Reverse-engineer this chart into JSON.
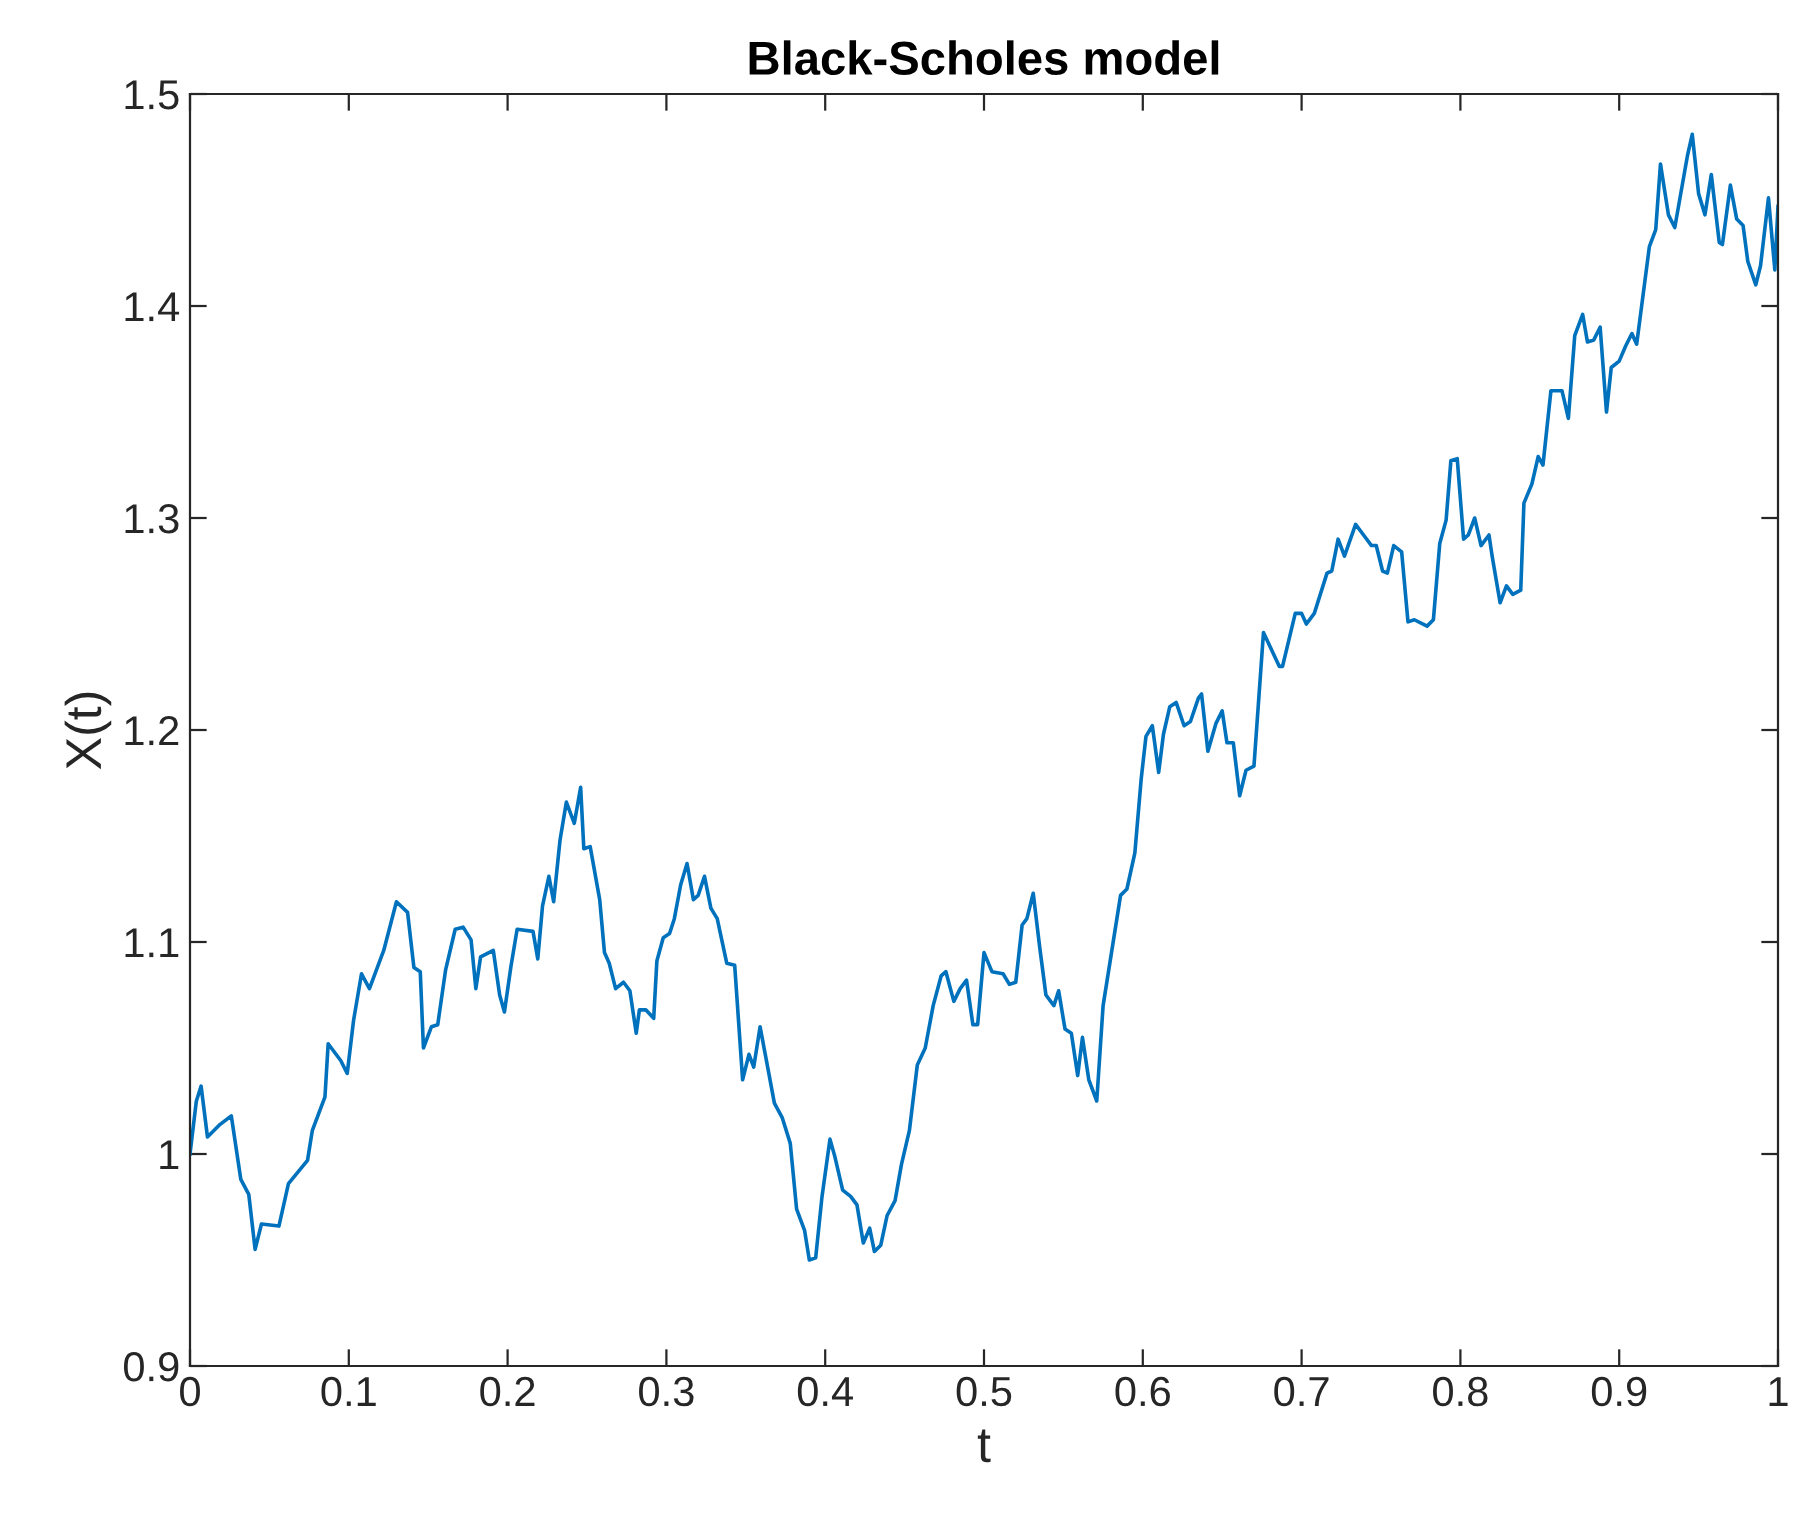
{
  "chart_data": {
    "type": "line",
    "title": "Black-Scholes model",
    "xlabel": "t",
    "ylabel": "X(t)",
    "xlim": [
      0,
      1
    ],
    "ylim": [
      0.9,
      1.5
    ],
    "xticks": [
      0,
      0.1,
      0.2,
      0.3,
      0.4,
      0.5,
      0.6,
      0.7,
      0.8,
      0.9,
      1
    ],
    "yticks": [
      0.9,
      1,
      1.1,
      1.2,
      1.3,
      1.4,
      1.5
    ],
    "grid": false,
    "legend": false,
    "marker": "none",
    "line_style": "solid",
    "series": [
      {
        "color": "#0072bd",
        "x": [
          0,
          0.004,
          0.007,
          0.011,
          0.019,
          0.026,
          0.032,
          0.037,
          0.041,
          0.045,
          0.056,
          0.062,
          0.074,
          0.077,
          0.085,
          0.087,
          0.095,
          0.099,
          0.103,
          0.108,
          0.113,
          0.122,
          0.13,
          0.137,
          0.141,
          0.145,
          0.147,
          0.152,
          0.156,
          0.161,
          0.167,
          0.172,
          0.177,
          0.18,
          0.183,
          0.191,
          0.195,
          0.198,
          0.202,
          0.206,
          0.216,
          0.219,
          0.222,
          0.226,
          0.229,
          0.233,
          0.237,
          0.242,
          0.246,
          0.248,
          0.252,
          0.258,
          0.261,
          0.264,
          0.268,
          0.273,
          0.277,
          0.281,
          0.283,
          0.287,
          0.292,
          0.294,
          0.298,
          0.302,
          0.305,
          0.309,
          0.313,
          0.317,
          0.32,
          0.324,
          0.328,
          0.332,
          0.338,
          0.343,
          0.348,
          0.352,
          0.355,
          0.359,
          0.364,
          0.368,
          0.373,
          0.378,
          0.382,
          0.387,
          0.39,
          0.394,
          0.398,
          0.403,
          0.406,
          0.411,
          0.416,
          0.42,
          0.424,
          0.428,
          0.431,
          0.435,
          0.439,
          0.444,
          0.448,
          0.453,
          0.458,
          0.463,
          0.468,
          0.473,
          0.476,
          0.481,
          0.485,
          0.489,
          0.493,
          0.496,
          0.5,
          0.505,
          0.512,
          0.516,
          0.52,
          0.524,
          0.527,
          0.531,
          0.535,
          0.539,
          0.544,
          0.547,
          0.551,
          0.555,
          0.559,
          0.562,
          0.566,
          0.571,
          0.575,
          0.586,
          0.59,
          0.595,
          0.599,
          0.602,
          0.606,
          0.61,
          0.613,
          0.617,
          0.621,
          0.626,
          0.63,
          0.635,
          0.637,
          0.641,
          0.646,
          0.65,
          0.653,
          0.657,
          0.661,
          0.665,
          0.67,
          0.676,
          0.686,
          0.688,
          0.696,
          0.7,
          0.703,
          0.708,
          0.716,
          0.719,
          0.723,
          0.727,
          0.734,
          0.739,
          0.744,
          0.747,
          0.751,
          0.754,
          0.758,
          0.763,
          0.767,
          0.771,
          0.779,
          0.783,
          0.787,
          0.791,
          0.794,
          0.798,
          0.802,
          0.805,
          0.809,
          0.813,
          0.818,
          0.82,
          0.825,
          0.829,
          0.833,
          0.838,
          0.84,
          0.845,
          0.849,
          0.852,
          0.857,
          0.864,
          0.868,
          0.872,
          0.877,
          0.88,
          0.884,
          0.888,
          0.892,
          0.895,
          0.9,
          0.904,
          0.908,
          0.911,
          0.919,
          0.923,
          0.926,
          0.931,
          0.935,
          0.943,
          0.946,
          0.95,
          0.954,
          0.958,
          0.963,
          0.965,
          0.97,
          0.974,
          0.978,
          0.981,
          0.986,
          0.989,
          0.994,
          0.998,
          1
        ],
        "values": [
          1.0,
          1.025,
          1.032,
          1.008,
          1.014,
          1.018,
          0.988,
          0.981,
          0.955,
          0.967,
          0.966,
          0.986,
          0.997,
          1.011,
          1.027,
          1.052,
          1.044,
          1.038,
          1.063,
          1.085,
          1.078,
          1.096,
          1.119,
          1.114,
          1.088,
          1.086,
          1.05,
          1.06,
          1.061,
          1.087,
          1.106,
          1.107,
          1.101,
          1.078,
          1.093,
          1.096,
          1.075,
          1.067,
          1.088,
          1.106,
          1.105,
          1.092,
          1.117,
          1.131,
          1.119,
          1.148,
          1.166,
          1.156,
          1.173,
          1.144,
          1.145,
          1.12,
          1.095,
          1.09,
          1.078,
          1.081,
          1.077,
          1.057,
          1.068,
          1.068,
          1.064,
          1.091,
          1.102,
          1.104,
          1.111,
          1.127,
          1.137,
          1.12,
          1.122,
          1.131,
          1.116,
          1.111,
          1.09,
          1.089,
          1.035,
          1.047,
          1.041,
          1.06,
          1.04,
          1.024,
          1.017,
          1.005,
          0.974,
          0.964,
          0.95,
          0.951,
          0.98,
          1.007,
          0.999,
          0.983,
          0.98,
          0.976,
          0.958,
          0.965,
          0.954,
          0.957,
          0.971,
          0.978,
          0.995,
          1.011,
          1.042,
          1.05,
          1.07,
          1.084,
          1.086,
          1.072,
          1.078,
          1.082,
          1.061,
          1.061,
          1.095,
          1.086,
          1.085,
          1.08,
          1.081,
          1.108,
          1.111,
          1.123,
          1.098,
          1.075,
          1.07,
          1.077,
          1.059,
          1.057,
          1.037,
          1.055,
          1.035,
          1.025,
          1.07,
          1.122,
          1.125,
          1.142,
          1.177,
          1.197,
          1.202,
          1.18,
          1.198,
          1.211,
          1.213,
          1.202,
          1.204,
          1.215,
          1.217,
          1.19,
          1.203,
          1.209,
          1.194,
          1.194,
          1.169,
          1.181,
          1.183,
          1.246,
          1.23,
          1.23,
          1.255,
          1.255,
          1.25,
          1.255,
          1.274,
          1.275,
          1.29,
          1.282,
          1.297,
          1.292,
          1.287,
          1.287,
          1.275,
          1.274,
          1.287,
          1.284,
          1.251,
          1.252,
          1.249,
          1.252,
          1.288,
          1.299,
          1.327,
          1.328,
          1.29,
          1.292,
          1.3,
          1.287,
          1.292,
          1.282,
          1.26,
          1.268,
          1.264,
          1.266,
          1.307,
          1.316,
          1.329,
          1.325,
          1.36,
          1.36,
          1.347,
          1.386,
          1.396,
          1.383,
          1.384,
          1.39,
          1.35,
          1.371,
          1.374,
          1.381,
          1.387,
          1.382,
          1.428,
          1.436,
          1.467,
          1.443,
          1.437,
          1.471,
          1.481,
          1.453,
          1.443,
          1.462,
          1.43,
          1.429,
          1.457,
          1.441,
          1.438,
          1.421,
          1.41,
          1.419,
          1.451,
          1.417,
          1.447
        ]
      }
    ]
  }
}
